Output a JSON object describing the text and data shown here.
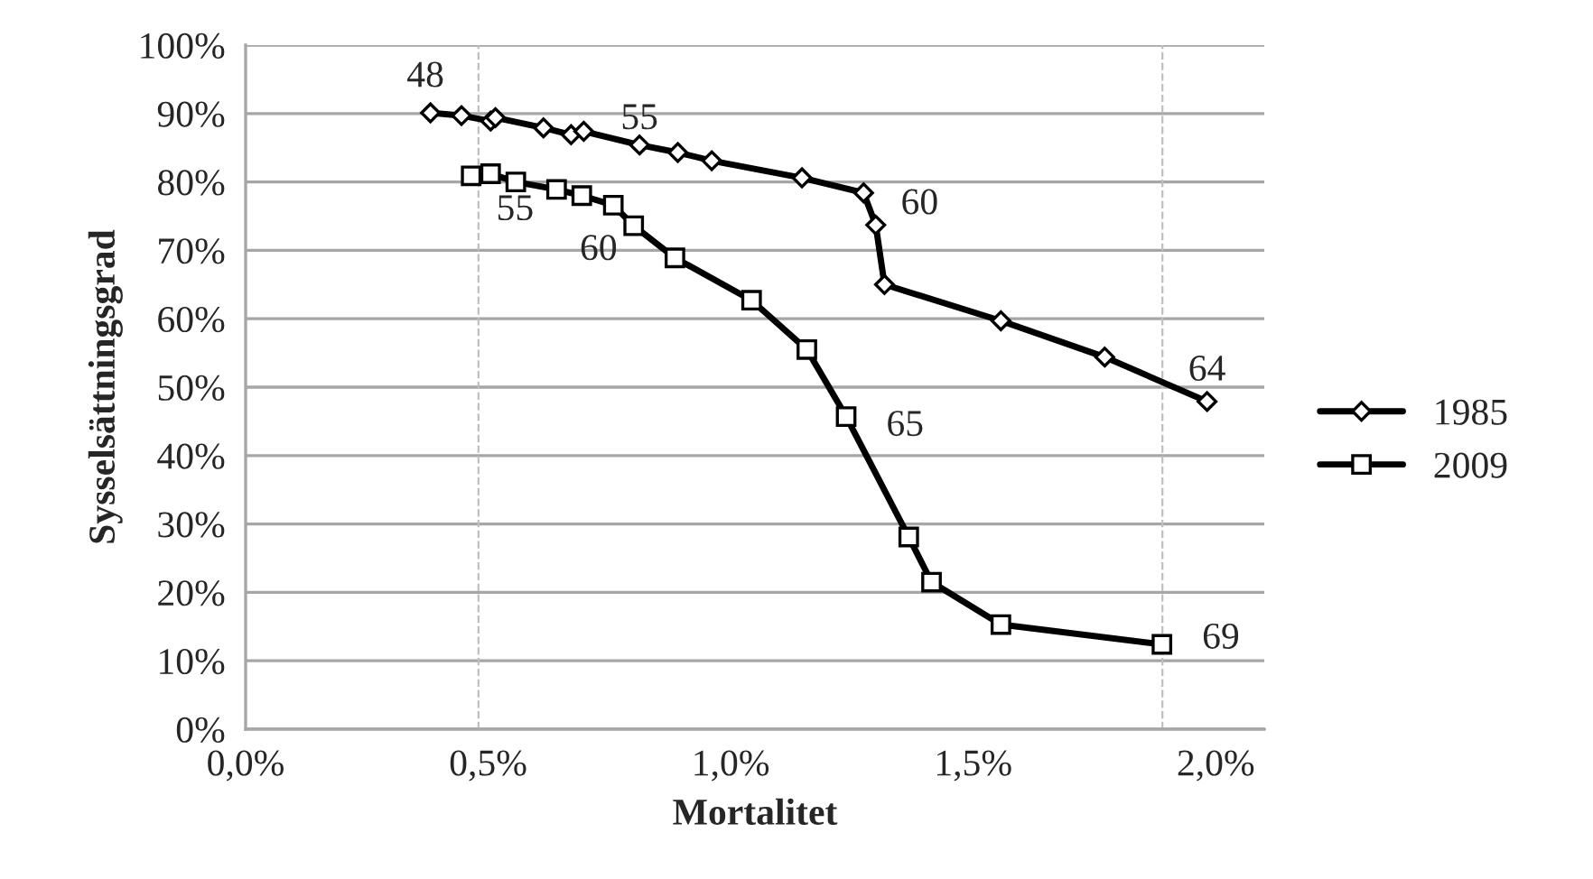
{
  "chart_data": {
    "type": "line",
    "xlabel": "Mortalitet",
    "ylabel": "Sysselsättningsgrad",
    "xlim": [
      0,
      2.1
    ],
    "ylim": [
      0,
      100
    ],
    "xticks": [
      {
        "value": 0,
        "label": "0,0%"
      },
      {
        "value": 0.5,
        "label": "0,5%"
      },
      {
        "value": 1.0,
        "label": "1,0%"
      },
      {
        "value": 1.5,
        "label": "1,5%"
      },
      {
        "value": 2.0,
        "label": "2,0%"
      }
    ],
    "yticks": [
      {
        "value": 0,
        "label": "0%"
      },
      {
        "value": 10,
        "label": "10%"
      },
      {
        "value": 20,
        "label": "20%"
      },
      {
        "value": 30,
        "label": "30%"
      },
      {
        "value": 40,
        "label": "40%"
      },
      {
        "value": 50,
        "label": "50%"
      },
      {
        "value": 60,
        "label": "60%"
      },
      {
        "value": 70,
        "label": "70%"
      },
      {
        "value": 80,
        "label": "80%"
      },
      {
        "value": 90,
        "label": "90%"
      },
      {
        "value": 100,
        "label": "100%"
      }
    ],
    "grid": "y",
    "legend": "right",
    "line_style": "solid",
    "series": [
      {
        "name": "1985",
        "color": "#000000",
        "marker": "diamond",
        "x": [
          0.381,
          0.445,
          0.505,
          0.515,
          0.614,
          0.671,
          0.697,
          0.812,
          0.891,
          0.961,
          1.147,
          1.274,
          1.299,
          1.317,
          1.557,
          1.771,
          1.982
        ],
        "values": [
          90.1,
          89.7,
          88.9,
          89.4,
          87.9,
          86.9,
          87.4,
          85.4,
          84.3,
          83.1,
          80.6,
          78.4,
          73.7,
          65.0,
          59.7,
          54.4,
          47.9
        ]
      },
      {
        "name": "2009",
        "color": "#000000",
        "marker": "square",
        "x": [
          0.465,
          0.505,
          0.557,
          0.641,
          0.693,
          0.758,
          0.8,
          0.885,
          1.043,
          1.157,
          1.238,
          1.367,
          1.414,
          1.557,
          1.889
        ],
        "values": [
          80.9,
          81.2,
          80.0,
          78.9,
          78.0,
          76.6,
          73.6,
          68.9,
          62.7,
          55.5,
          45.7,
          28.1,
          21.5,
          15.3,
          12.4
        ]
      }
    ],
    "ref_lines": [
      {
        "axis": "x",
        "value": 0.48,
        "color": "#bfbfbf",
        "line_style": "dashed"
      },
      {
        "axis": "x",
        "value": 1.89,
        "color": "#bfbfbf",
        "line_style": "dashed"
      }
    ],
    "annotations": [
      {
        "text": "48",
        "x": 0.381,
        "y": 90.1
      },
      {
        "text": "55",
        "x": 0.812,
        "y": 85.4
      },
      {
        "text": "60",
        "x": 1.299,
        "y": 73.7
      },
      {
        "text": "64",
        "x": 1.982,
        "y": 47.9
      },
      {
        "text": "55",
        "x": 0.465,
        "y": 80.9
      },
      {
        "text": "60",
        "x": 0.8,
        "y": 73.6
      },
      {
        "text": "65",
        "x": 1.238,
        "y": 45.7
      },
      {
        "text": "69",
        "x": 1.889,
        "y": 12.4
      }
    ]
  }
}
